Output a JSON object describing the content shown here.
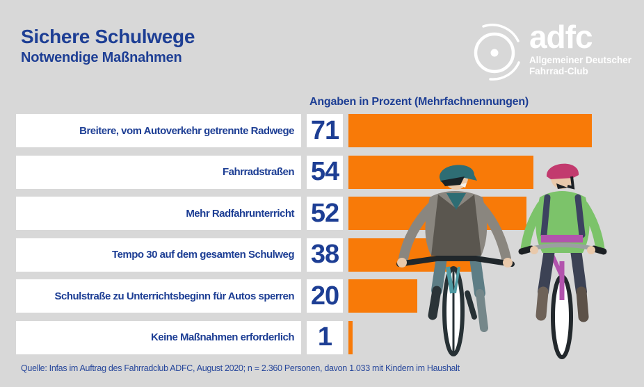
{
  "header": {
    "title": "Sichere Schulwege",
    "subtitle": "Notwendige Maßnahmen"
  },
  "logo": {
    "brand": "adfc",
    "subtitle_line1": "Allgemeiner Deutscher",
    "subtitle_line2": "Fahrrad-Club"
  },
  "chart_data": {
    "type": "bar",
    "orientation": "horizontal",
    "title": "Angaben in Prozent (Mehrfachnennungen)",
    "unit": "%",
    "xlim": [
      0,
      100
    ],
    "categories": [
      "Breitere, vom Autoverkehr getrennte Radwege",
      "Fahrradstraßen",
      "Mehr Radfahrunterricht",
      "Tempo 30 auf dem gesamten Schulweg",
      "Schulstraße zu Unterrichtsbeginn für Autos sperren",
      "Keine Maßnahmen erforderlich"
    ],
    "values": [
      71,
      54,
      52,
      38,
      20,
      1
    ],
    "bar_color": "#f87a08",
    "value_color": "#1d3e94",
    "legend": "none",
    "grid": "off"
  },
  "footer": {
    "source": "Quelle: Infas im Auftrag des Fahrradclub ADFC, August 2020; n = 2.360 Personen, davon 1.033 mit Kindern im Haushalt"
  },
  "illustration": {
    "description": "Two children wearing helmets riding bicycles toward the viewer"
  },
  "colors": {
    "background": "#d8d8d8",
    "accent_orange": "#f87a08",
    "brand_blue": "#1d3e94",
    "logo_white": "#ffffff"
  }
}
